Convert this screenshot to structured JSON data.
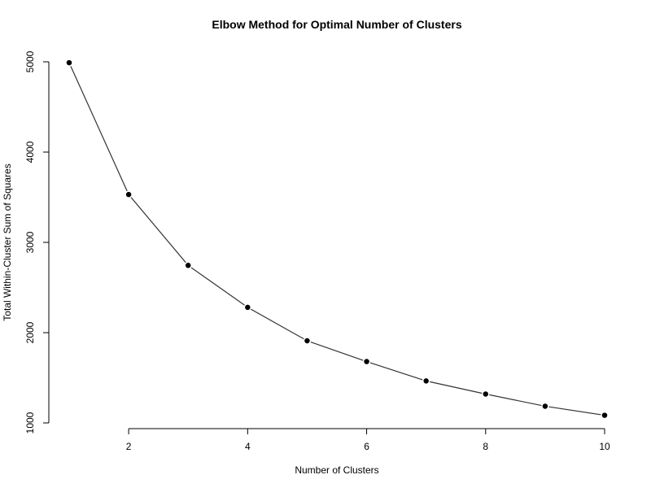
{
  "chart_data": {
    "type": "line",
    "title": "Elbow Method for Optimal Number of Clusters",
    "xlabel": "Number of Clusters",
    "ylabel": "Total Within-Cluster Sum of Squares",
    "x": [
      1,
      2,
      3,
      4,
      5,
      6,
      7,
      8,
      9,
      10
    ],
    "series": [
      {
        "values": [
          4990,
          3530,
          2745,
          2280,
          1910,
          1680,
          1465,
          1320,
          1185,
          1085
        ]
      }
    ],
    "xlim": [
      1,
      10
    ],
    "ylim": [
      1000,
      5000
    ],
    "xticks": [
      2,
      4,
      6,
      8,
      10
    ],
    "yticks": [
      1000,
      2000,
      3000,
      4000,
      5000
    ],
    "grid": false,
    "legend": "none",
    "colors": {
      "line": "#333333",
      "points": "#000000"
    }
  }
}
